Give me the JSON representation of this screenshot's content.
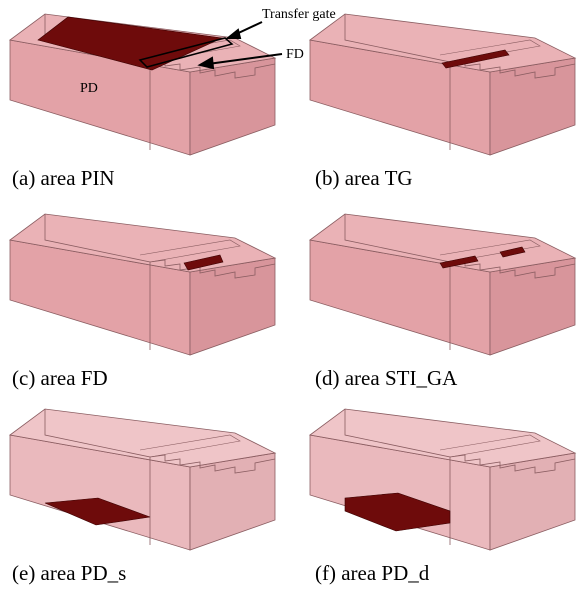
{
  "panels": [
    {
      "caption": "(a) area PIN"
    },
    {
      "caption": "(b) area TG"
    },
    {
      "caption": "(c) area FD"
    },
    {
      "caption": "(d) area STI_GA"
    },
    {
      "caption": "(e) area PD_s"
    },
    {
      "caption": "(f) area PD_d"
    }
  ],
  "annotations": {
    "transfer_gate": "Transfer gate",
    "fd": "FD",
    "pd": "PD"
  }
}
